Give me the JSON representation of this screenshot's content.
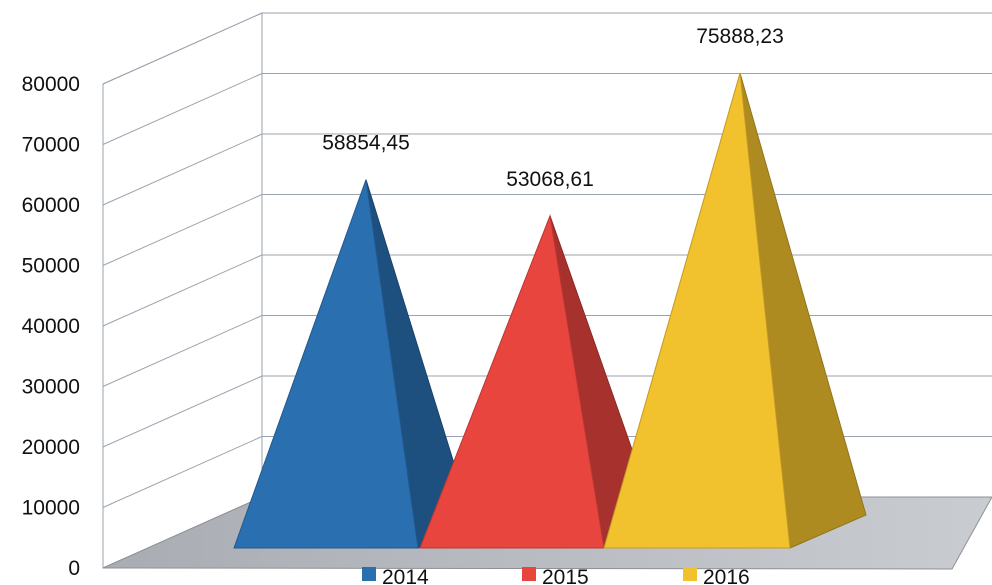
{
  "chart_data": {
    "type": "bar",
    "subtype": "3d-pyramid",
    "categories": [
      "2014",
      "2015",
      "2016"
    ],
    "values": [
      58854.45,
      53068.61,
      75888.23
    ],
    "data_labels": [
      "58854,45",
      "53068,61",
      "75888,23"
    ],
    "ylim": [
      0,
      80000
    ],
    "yticks": [
      0,
      10000,
      20000,
      30000,
      40000,
      50000,
      60000,
      70000,
      80000
    ],
    "ytick_labels": [
      "0",
      "10000",
      "20000",
      "30000",
      "40000",
      "50000",
      "60000",
      "70000",
      "80000"
    ],
    "grid": true,
    "legend": {
      "position": "bottom",
      "entries": [
        "2014",
        "2015",
        "2016"
      ]
    },
    "colors": [
      "#2a6fb0",
      "#e8453f",
      "#f2c12e"
    ],
    "title": "",
    "xlabel": "",
    "ylabel": ""
  }
}
